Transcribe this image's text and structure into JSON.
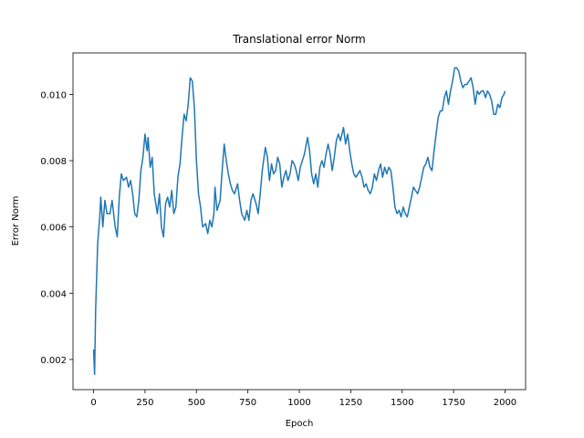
{
  "chart_data": {
    "type": "line",
    "title": "Translational error Norm",
    "x_label": "Epoch",
    "y_label": "Error Norm",
    "x": [
      0,
      5,
      10,
      20,
      30,
      35,
      45,
      55,
      65,
      80,
      90,
      105,
      115,
      125,
      135,
      145,
      160,
      170,
      180,
      190,
      200,
      210,
      220,
      230,
      240,
      250,
      260,
      265,
      275,
      285,
      295,
      300,
      310,
      320,
      330,
      340,
      350,
      360,
      370,
      380,
      390,
      400,
      410,
      420,
      430,
      440,
      450,
      460,
      470,
      480,
      490,
      500,
      510,
      520,
      530,
      545,
      555,
      565,
      575,
      585,
      590,
      600,
      615,
      625,
      635,
      645,
      655,
      665,
      675,
      685,
      700,
      710,
      720,
      735,
      745,
      755,
      765,
      775,
      790,
      800,
      810,
      820,
      835,
      845,
      855,
      865,
      875,
      885,
      895,
      905,
      915,
      925,
      935,
      945,
      955,
      965,
      975,
      985,
      995,
      1005,
      1015,
      1025,
      1040,
      1050,
      1060,
      1070,
      1080,
      1090,
      1100,
      1110,
      1120,
      1130,
      1140,
      1150,
      1160,
      1170,
      1180,
      1190,
      1200,
      1215,
      1225,
      1235,
      1245,
      1255,
      1265,
      1275,
      1285,
      1295,
      1305,
      1315,
      1325,
      1335,
      1345,
      1355,
      1365,
      1375,
      1385,
      1395,
      1405,
      1415,
      1425,
      1435,
      1445,
      1455,
      1465,
      1475,
      1485,
      1495,
      1505,
      1515,
      1525,
      1535,
      1545,
      1555,
      1565,
      1575,
      1585,
      1595,
      1605,
      1615,
      1625,
      1635,
      1645,
      1655,
      1665,
      1675,
      1685,
      1695,
      1705,
      1715,
      1725,
      1735,
      1745,
      1755,
      1765,
      1775,
      1785,
      1795,
      1805,
      1815,
      1825,
      1835,
      1845,
      1855,
      1865,
      1875,
      1885,
      1895,
      1905,
      1915,
      1925,
      1935,
      1945,
      1955,
      1965,
      1975,
      1985,
      1995,
      2000
    ],
    "series": [
      {
        "color": "#1f77b4",
        "values": [
          0.0023,
          0.00155,
          0.0035,
          0.0055,
          0.0063,
          0.0069,
          0.006,
          0.0068,
          0.0064,
          0.0064,
          0.0068,
          0.006,
          0.0057,
          0.0069,
          0.0076,
          0.0074,
          0.0075,
          0.0072,
          0.0074,
          0.007,
          0.0064,
          0.0063,
          0.0068,
          0.0077,
          0.0081,
          0.0088,
          0.0083,
          0.0087,
          0.0078,
          0.0081,
          0.007,
          0.0068,
          0.0064,
          0.007,
          0.006,
          0.0057,
          0.0067,
          0.0069,
          0.0066,
          0.0071,
          0.0064,
          0.0066,
          0.0075,
          0.0079,
          0.0087,
          0.0094,
          0.0092,
          0.0097,
          0.0105,
          0.0104,
          0.0096,
          0.008,
          0.007,
          0.0066,
          0.006,
          0.0061,
          0.0058,
          0.0062,
          0.006,
          0.0064,
          0.0072,
          0.0065,
          0.0068,
          0.0077,
          0.0085,
          0.008,
          0.0076,
          0.0073,
          0.0071,
          0.007,
          0.0073,
          0.0068,
          0.0064,
          0.0062,
          0.0065,
          0.0062,
          0.0068,
          0.007,
          0.0067,
          0.0064,
          0.007,
          0.0077,
          0.0084,
          0.0081,
          0.0074,
          0.0079,
          0.0076,
          0.0077,
          0.0081,
          0.0079,
          0.0072,
          0.0075,
          0.0077,
          0.0074,
          0.0076,
          0.008,
          0.0079,
          0.0077,
          0.0074,
          0.0078,
          0.008,
          0.0082,
          0.0087,
          0.0083,
          0.0076,
          0.0073,
          0.0076,
          0.0072,
          0.0078,
          0.008,
          0.0078,
          0.0082,
          0.0085,
          0.0082,
          0.0077,
          0.0081,
          0.0086,
          0.0088,
          0.0086,
          0.009,
          0.0085,
          0.0088,
          0.0083,
          0.0079,
          0.0076,
          0.0075,
          0.0076,
          0.0077,
          0.0075,
          0.0072,
          0.0073,
          0.0071,
          0.007,
          0.0072,
          0.0076,
          0.0074,
          0.0077,
          0.0079,
          0.0075,
          0.0078,
          0.0076,
          0.0078,
          0.0077,
          0.0072,
          0.0066,
          0.0064,
          0.0065,
          0.0063,
          0.0066,
          0.0064,
          0.0063,
          0.0066,
          0.0069,
          0.0072,
          0.0071,
          0.007,
          0.0072,
          0.0075,
          0.0078,
          0.0079,
          0.0081,
          0.0078,
          0.0077,
          0.0083,
          0.0088,
          0.0093,
          0.0095,
          0.0095,
          0.0099,
          0.0101,
          0.0097,
          0.0101,
          0.0104,
          0.0108,
          0.0108,
          0.0107,
          0.0104,
          0.0102,
          0.0103,
          0.0103,
          0.0104,
          0.0105,
          0.0102,
          0.0097,
          0.0101,
          0.01,
          0.0101,
          0.0101,
          0.0099,
          0.0101,
          0.01,
          0.0098,
          0.0094,
          0.0094,
          0.0097,
          0.0096,
          0.0099,
          0.01,
          0.0101
        ]
      }
    ],
    "xlim": [
      -100,
      2100
    ],
    "xticks": [
      0,
      250,
      500,
      750,
      1000,
      1250,
      1500,
      1750,
      2000
    ],
    "ylim": [
      0.00109,
      0.01125
    ],
    "yticks": [
      0.002,
      0.004,
      0.006,
      0.008,
      {
        "value": 0.01,
        "label": "0.010"
      }
    ],
    "grid": false
  }
}
